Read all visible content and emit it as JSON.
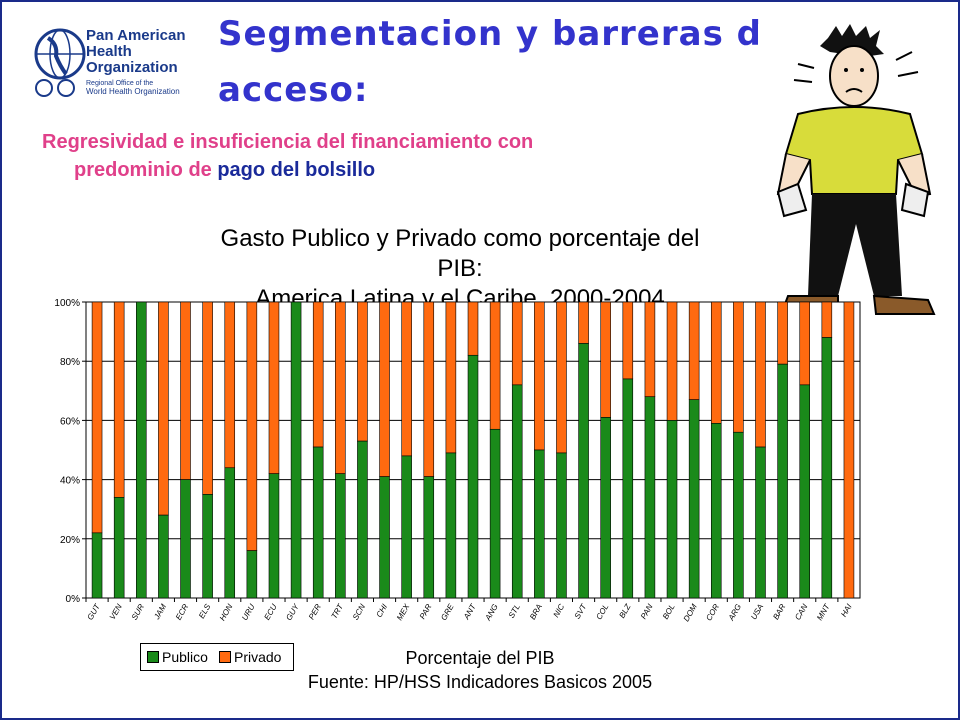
{
  "header": {
    "org_line1": "Pan American",
    "org_line2": "Health",
    "org_line3": "Organization",
    "org_sub1": "Regional Office of the",
    "org_sub2": "World Health Organization",
    "title_line1": "Segmentacion y barreras de",
    "title_line2": "acceso:",
    "subtitle_part1": "Regresividad e insuficiencia del financiamiento con",
    "subtitle_part2": "predominio de ",
    "subtitle_part3": "pago del bolsillo"
  },
  "colors": {
    "publico": "#1a8a1a",
    "privado": "#ff6a10",
    "title": "#3333cc",
    "subtitle": "#e0408a"
  },
  "icons": {
    "logo": "paho-globe-logo",
    "cartoon": "empty-pockets-man"
  },
  "chart_data": {
    "type": "bar",
    "stacked": true,
    "title_line1": "Gasto Publico y Privado como porcentaje del PIB:",
    "title_line2": "America Latina y el Caribe, 2000-2004",
    "xlabel": "Porcentaje del PIB",
    "source": "Fuente: HP/HSS Indicadores Basicos 2005",
    "ylim": [
      0,
      100
    ],
    "yticks": [
      "0%",
      "20%",
      "40%",
      "60%",
      "80%",
      "100%"
    ],
    "grid": true,
    "legend_position": "bottom-left",
    "categories": [
      "GUT",
      "VEN",
      "SUR",
      "JAM",
      "ECR",
      "ELS",
      "HON",
      "URU",
      "ECU",
      "GUY",
      "PER",
      "TRT",
      "SCN",
      "CHI",
      "MEX",
      "PAR",
      "GRE",
      "ANT",
      "ANG",
      "STL",
      "BRA",
      "NIC",
      "SVT",
      "COL",
      "BLZ",
      "PAN",
      "BOL",
      "DOM",
      "COR",
      "ARG",
      "USA",
      "BAR",
      "CAN",
      "MNT",
      "HAI"
    ],
    "series": [
      {
        "name": "Publico",
        "values": [
          22,
          34,
          100,
          28,
          40,
          35,
          44,
          16,
          42,
          100,
          51,
          42,
          53,
          41,
          48,
          41,
          49,
          82,
          57,
          72,
          50,
          49,
          86,
          61,
          74,
          68,
          60,
          67,
          59,
          56,
          51,
          79,
          72,
          88,
          0
        ]
      },
      {
        "name": "Privado",
        "values": [
          78,
          66,
          0,
          72,
          60,
          65,
          56,
          84,
          58,
          0,
          49,
          58,
          47,
          59,
          52,
          59,
          51,
          18,
          43,
          28,
          50,
          51,
          14,
          39,
          26,
          32,
          40,
          33,
          41,
          44,
          49,
          21,
          28,
          12,
          100
        ]
      }
    ]
  }
}
